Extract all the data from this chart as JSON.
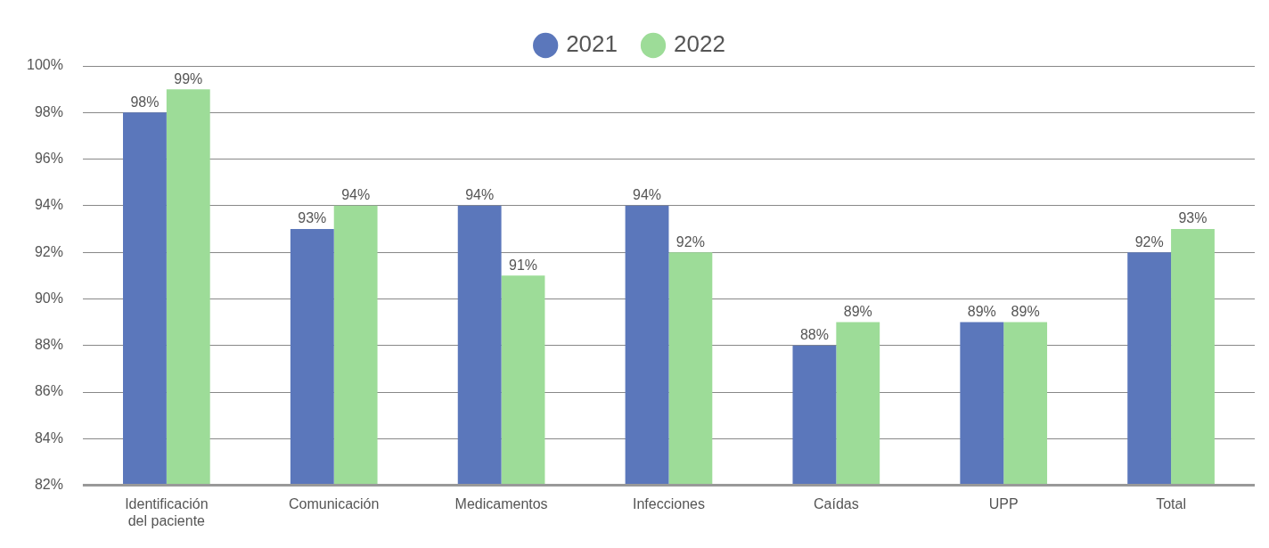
{
  "chart_data": {
    "type": "bar",
    "categories": [
      "Identificación del paciente",
      "Comunicación",
      "Medicamentos",
      "Infecciones",
      "Caídas",
      "UPP",
      "Total"
    ],
    "series": [
      {
        "name": "2021",
        "color": "#5b77bb",
        "values": [
          98,
          93,
          94,
          94,
          88,
          89,
          92
        ],
        "value_labels": [
          "98%",
          "93%",
          "94%",
          "94%",
          "88%",
          "89%",
          "92%"
        ]
      },
      {
        "name": "2022",
        "color": "#9ddc98",
        "values": [
          99,
          94,
          91,
          92,
          89,
          89,
          93
        ],
        "value_labels": [
          "99%",
          "94%",
          "91%",
          "92%",
          "89%",
          "89%",
          "93%"
        ]
      }
    ],
    "ylim": [
      82,
      100
    ],
    "yticks": [
      {
        "value": 82,
        "label": "82%"
      },
      {
        "value": 84,
        "label": "84%"
      },
      {
        "value": 86,
        "label": "86%"
      },
      {
        "value": 88,
        "label": "88%"
      },
      {
        "value": 90,
        "label": "90%"
      },
      {
        "value": 92,
        "label": "92%"
      },
      {
        "value": 94,
        "label": "94%"
      },
      {
        "value": 96,
        "label": "96%"
      },
      {
        "value": 98,
        "label": "98%"
      },
      {
        "value": 100,
        "label": "100%"
      }
    ],
    "grid": "y",
    "legend": "top"
  }
}
